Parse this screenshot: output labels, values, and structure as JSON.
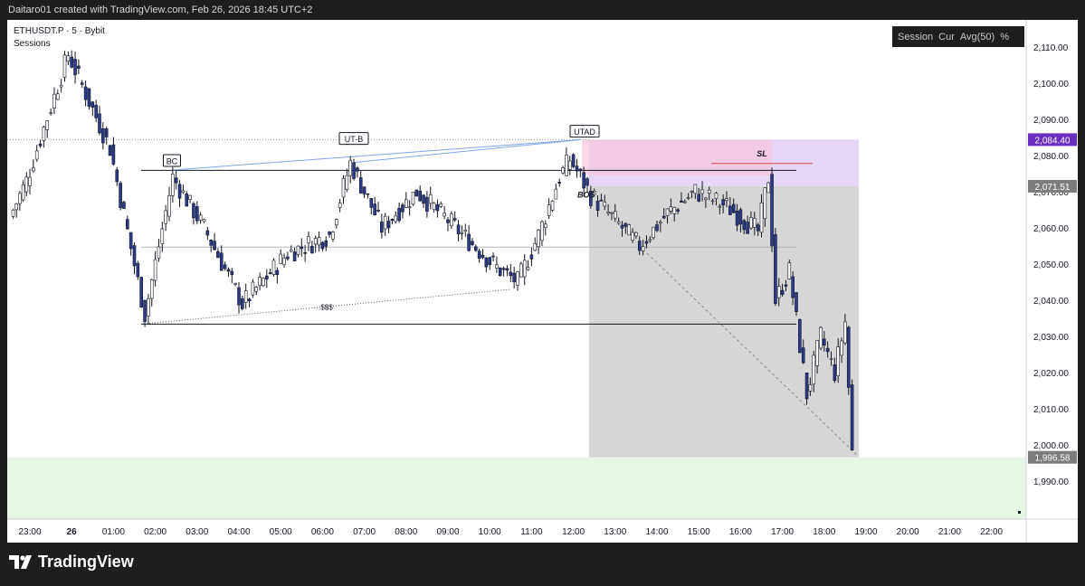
{
  "header": {
    "attribution": "Daitaro01 created with TradingView.com, Feb 26, 2026 18:45 UTC+2"
  },
  "legend": {
    "symbol_line": "ETHUSDT.P · 5 · Bybit",
    "indicator": "Sessions"
  },
  "widget": {
    "items": [
      "Session",
      "Cur",
      "Avg(50)",
      "%"
    ]
  },
  "labels": {
    "bc": "BC",
    "utb": "UT-B",
    "utad": "UTAD",
    "bos": "BOS",
    "sl": "SL",
    "sss": "$$$"
  },
  "footer": {
    "brand": "TradingView"
  },
  "colors": {
    "bull": "#ffffff",
    "bear": "#2b3a8a",
    "wick": "#131722",
    "zone_green": "#e6f7e6",
    "short_target": "#d6d6d6",
    "short_stop": "#e6d6f5",
    "pink_zone": "#f5c6dd",
    "marker_purple": "#6b2fbf",
    "marker_grey": "#7c7c7c"
  },
  "chart_data": {
    "type": "candlestick",
    "symbol": "ETHUSDT.P",
    "interval": "5",
    "exchange": "Bybit",
    "y_ticks": [
      "2,110.00",
      "2,100.00",
      "2,090.00",
      "2,080.00",
      "2,070.00",
      "2,060.00",
      "2,050.00",
      "2,040.00",
      "2,030.00",
      "2,020.00",
      "2,010.00",
      "2,000.00",
      "1,990.00"
    ],
    "ylim": [
      1981,
      2114
    ],
    "x_ticks": [
      "23:00",
      "26",
      "01:00",
      "02:00",
      "03:00",
      "04:00",
      "05:00",
      "06:00",
      "07:00",
      "08:00",
      "09:00",
      "10:00",
      "11:00",
      "12:00",
      "13:00",
      "14:00",
      "15:00",
      "16:00",
      "17:00",
      "18:00",
      "19:00",
      "20:00",
      "21:00",
      "22:00"
    ],
    "price_markers": [
      {
        "text": "2,084.40",
        "value": 2084.4,
        "style": "purple"
      },
      {
        "text": "2,071.51",
        "value": 2071.51,
        "style": "grey"
      },
      {
        "text": "1,996.58",
        "value": 1996.58,
        "style": "grey"
      }
    ],
    "levels": {
      "range_high": 2075.9,
      "range_mid": 2054.7,
      "range_low": 2033.4,
      "dotted_high": 2084.4
    },
    "position": {
      "side": "short",
      "entry": 2071.51,
      "stop": 2084.4,
      "target": 1996.58
    },
    "anchors": [
      {
        "label": "start",
        "price": 2063,
        "trend": 0
      },
      {
        "label": "23:00",
        "price": 2073,
        "trend": 0.3
      },
      {
        "label": "26",
        "price": 2108,
        "trend": 0.8
      },
      {
        "label": "01:00",
        "price": 2082,
        "trend": 0.3
      },
      {
        "label": "01:50",
        "price": 2036,
        "trend": 0.5
      },
      {
        "label": "02:30",
        "price": 2074,
        "trend": 0.3
      },
      {
        "label": "03:15",
        "price": 2060,
        "trend": 0.3
      },
      {
        "label": "04:10",
        "price": 2039,
        "trend": 0.3
      },
      {
        "label": "05:15",
        "price": 2053,
        "trend": 0.3
      },
      {
        "label": "06:15",
        "price": 2058,
        "trend": 0.3
      },
      {
        "label": "06:45",
        "price": 2078,
        "trend": 0.3
      },
      {
        "label": "07:30",
        "price": 2060,
        "trend": 0.3
      },
      {
        "label": "08:20",
        "price": 2070,
        "trend": 0.3
      },
      {
        "label": "09:00",
        "price": 2063,
        "trend": 0.3
      },
      {
        "label": "10:15",
        "price": 2049,
        "trend": 0.3
      },
      {
        "label": "10:45",
        "price": 2045,
        "trend": 0.3
      },
      {
        "label": "11:15",
        "price": 2058,
        "trend": 0.3
      },
      {
        "label": "11:45",
        "price": 2074,
        "trend": 0.3
      },
      {
        "label": "12:00",
        "price": 2079,
        "trend": 0.3
      },
      {
        "label": "12:30",
        "price": 2069,
        "trend": 0.3
      },
      {
        "label": "13:40",
        "price": 2055,
        "trend": 0.3
      },
      {
        "label": "14:20",
        "price": 2064,
        "trend": 0.3
      },
      {
        "label": "15:00",
        "price": 2070,
        "trend": 0.3
      },
      {
        "label": "15:45",
        "price": 2066,
        "trend": 0.3
      },
      {
        "label": "16:30",
        "price": 2059,
        "trend": 0.3
      },
      {
        "label": "16:45",
        "price": 2074,
        "trend": 0.3
      },
      {
        "label": "16:55",
        "price": 2040,
        "trend": 0.5
      },
      {
        "label": "17:15",
        "price": 2048,
        "trend": 0.4
      },
      {
        "label": "17:40",
        "price": 2014,
        "trend": 0.5
      },
      {
        "label": "18:00",
        "price": 2030,
        "trend": 0.4
      },
      {
        "label": "18:20",
        "price": 2020,
        "trend": 0.4
      },
      {
        "label": "18:35",
        "price": 2034,
        "trend": 0.4
      },
      {
        "label": "18:45",
        "price": 1998,
        "trend": 0.5
      }
    ]
  }
}
